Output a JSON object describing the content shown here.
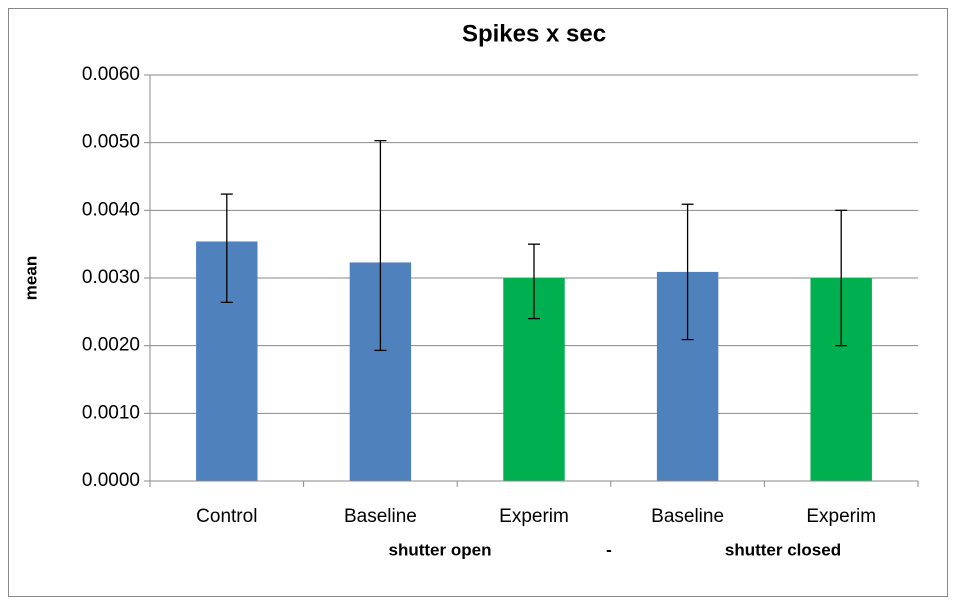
{
  "chart_data": {
    "type": "bar",
    "title": "Spikes x sec",
    "ylabel": "mean",
    "group_labels": [
      "shutter open",
      "-",
      "shutter closed"
    ],
    "categories": [
      "Control",
      "Baseline",
      "Experim",
      "Baseline",
      "Experim"
    ],
    "values": [
      0.00354,
      0.00323,
      0.003,
      0.00309,
      0.003
    ],
    "error_upper": [
      0.0007,
      0.0018,
      0.0005,
      0.001,
      0.001
    ],
    "error_lower": [
      0.0009,
      0.0013,
      0.0006,
      0.001,
      0.001
    ],
    "colors": [
      "#4f81bd",
      "#4f81bd",
      "#00b050",
      "#4f81bd",
      "#00b050"
    ],
    "ylim": [
      0,
      0.006
    ],
    "yticks": [
      {
        "value": 0,
        "label": "0.0000"
      },
      {
        "value": 0.001,
        "label": "0.0010"
      },
      {
        "value": 0.002,
        "label": "0.0020"
      },
      {
        "value": 0.003,
        "label": "0.0030"
      },
      {
        "value": 0.004,
        "label": "0.0040"
      },
      {
        "value": 0.005,
        "label": "0.0050"
      },
      {
        "value": 0.006,
        "label": "0.0060"
      }
    ],
    "grid": true
  }
}
